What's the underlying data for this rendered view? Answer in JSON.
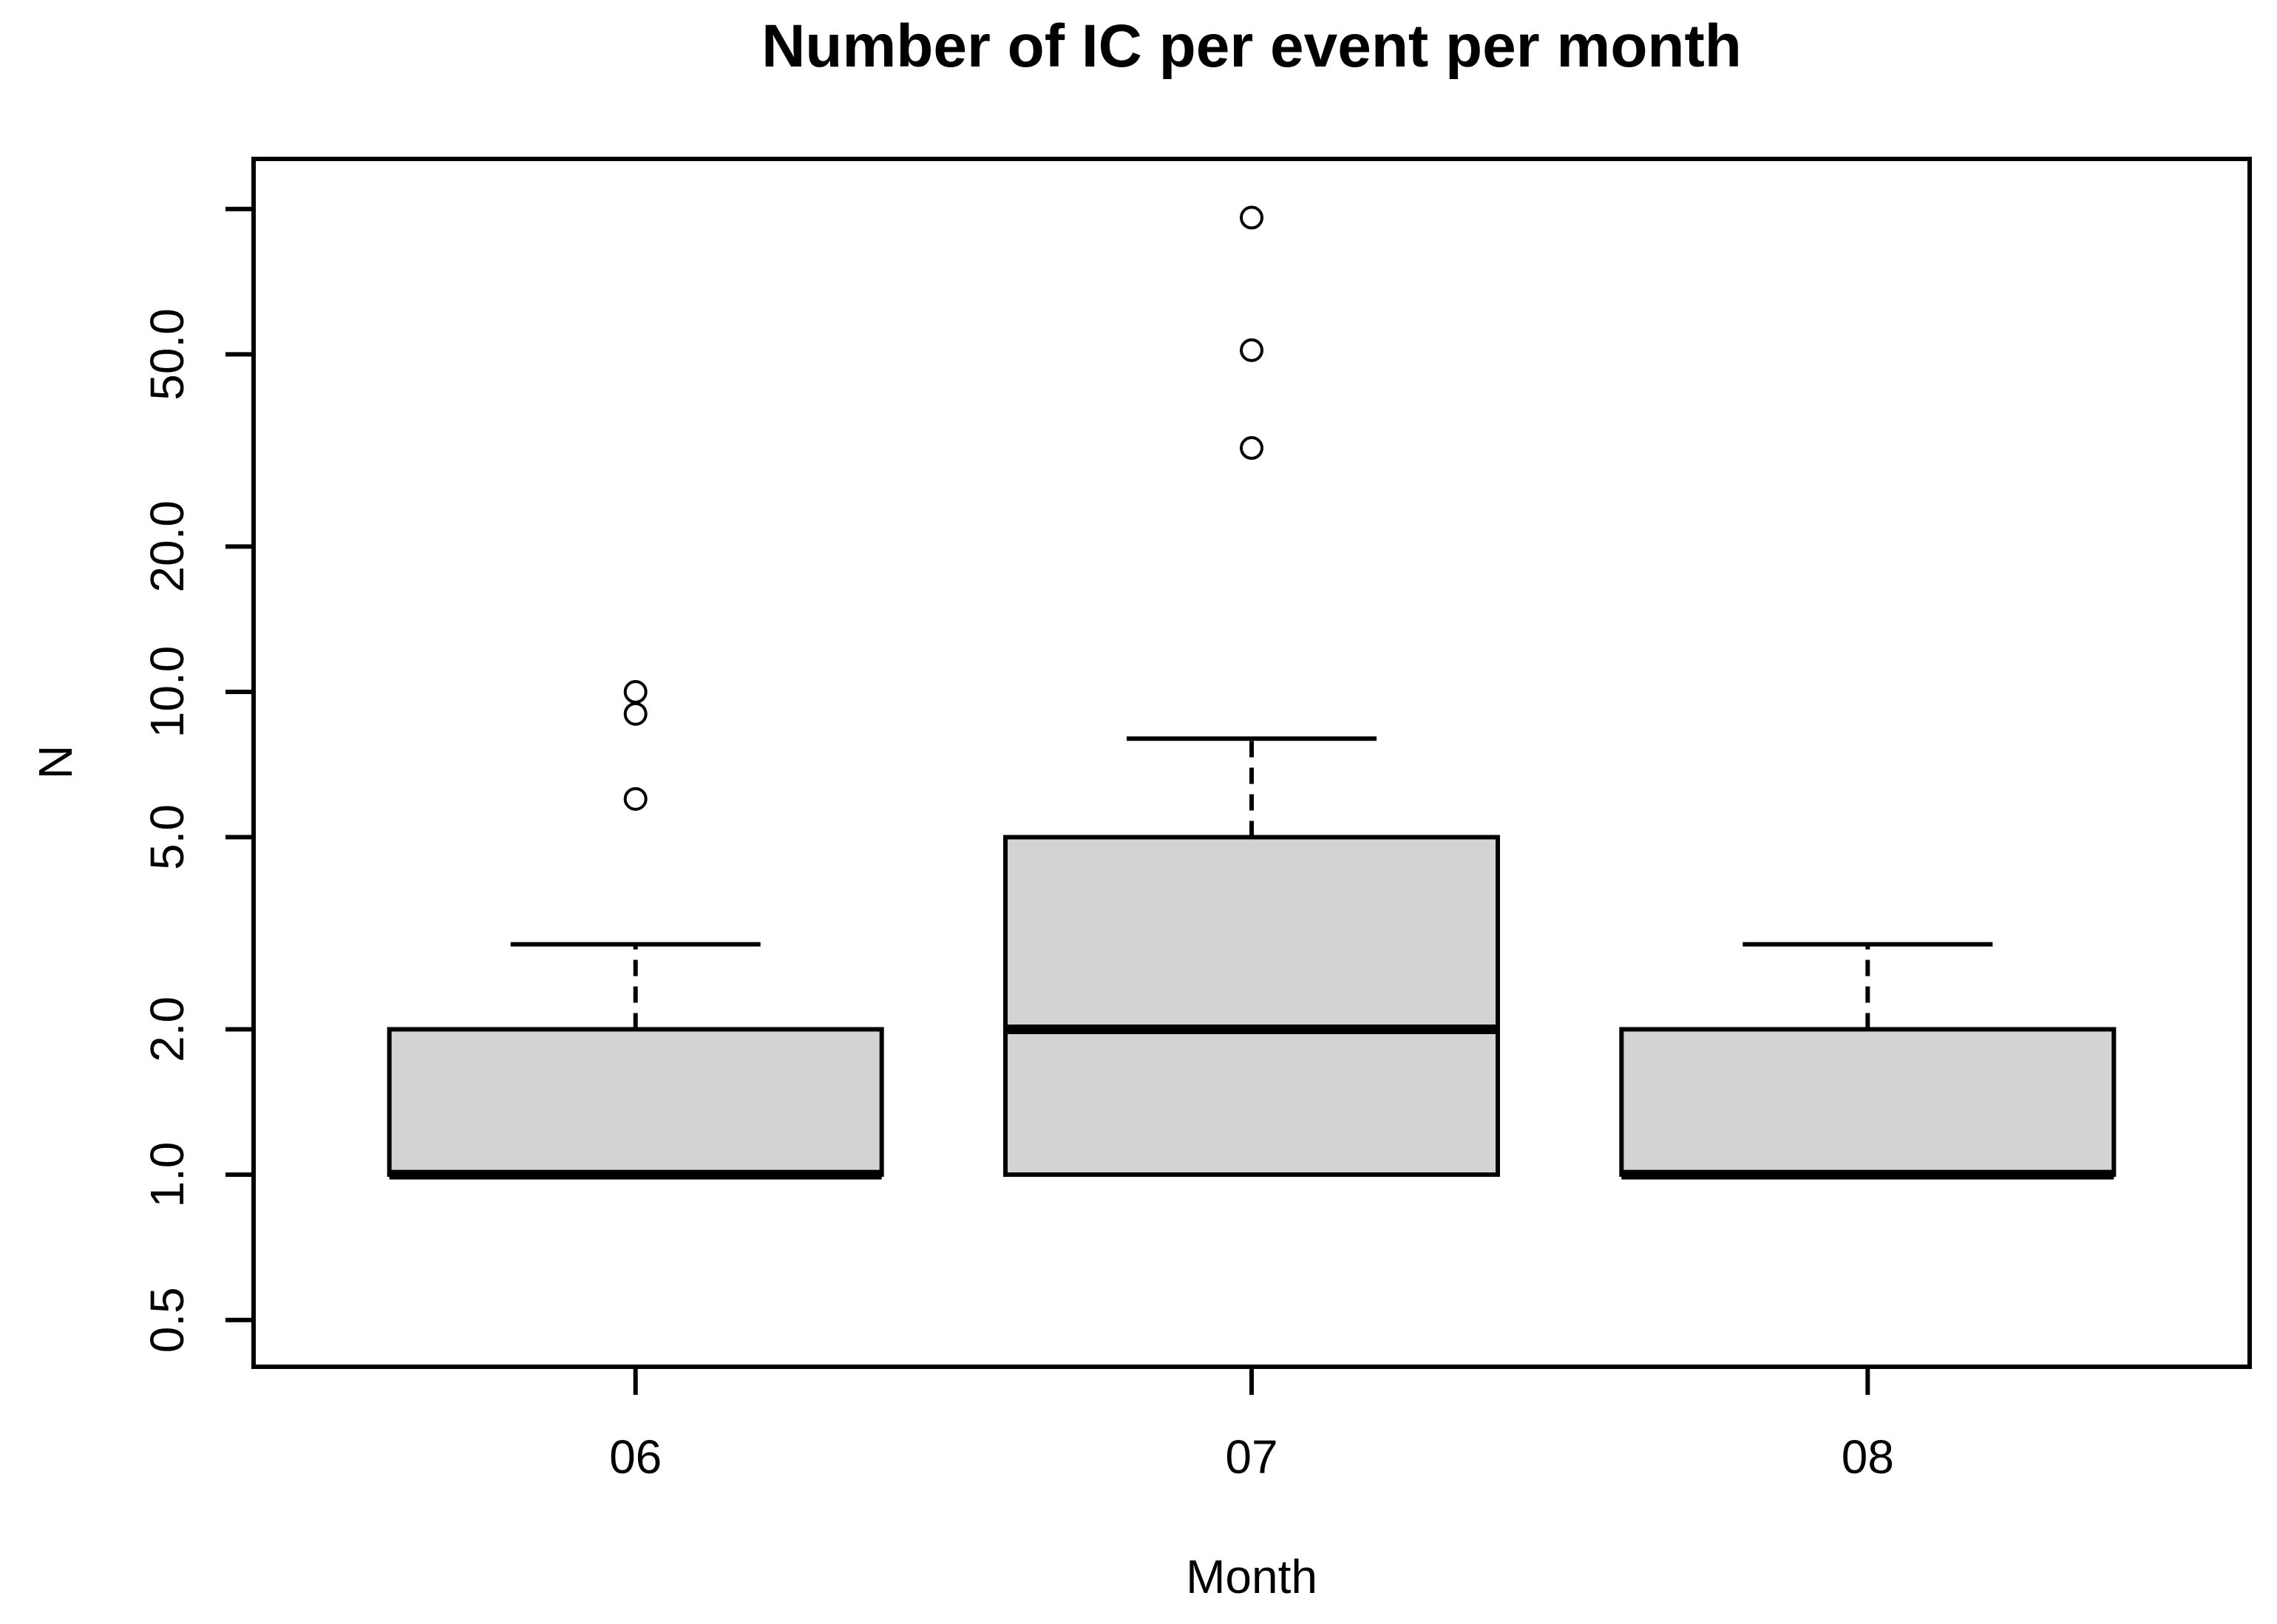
{
  "title": "Number of IC per event per month",
  "x_axis": {
    "label": "Month",
    "categories": [
      "06",
      "07",
      "08"
    ]
  },
  "y_axis": {
    "label": "N",
    "scale": "log",
    "ticks": [
      {
        "value": 0.5,
        "label": "0.5"
      },
      {
        "value": 1,
        "label": "1.0"
      },
      {
        "value": 2,
        "label": "2.0"
      },
      {
        "value": 5,
        "label": "5.0"
      },
      {
        "value": 10,
        "label": "10.0"
      },
      {
        "value": 20,
        "label": "20.0"
      },
      {
        "value": 50,
        "label": "50.0"
      },
      {
        "value": 100,
        "label": ""
      }
    ]
  },
  "chart_data": {
    "type": "boxplot",
    "title": "Number of IC per event per month",
    "xlabel": "Month",
    "ylabel": "N",
    "y_scale": "log10",
    "ylim": [
      0.4,
      127
    ],
    "grid": false,
    "legend": "none",
    "categories": [
      "06",
      "07",
      "08"
    ],
    "series": [
      {
        "category": "06",
        "whisker_low": 1,
        "q1": 1,
        "median": 1,
        "q3": 2,
        "whisker_high": 3,
        "outliers": [
          6,
          9,
          10
        ]
      },
      {
        "category": "07",
        "whisker_low": 1,
        "q1": 1,
        "median": 2,
        "q3": 5,
        "whisker_high": 8,
        "outliers": [
          32,
          51,
          96
        ]
      },
      {
        "category": "08",
        "whisker_low": 1,
        "q1": 1,
        "median": 1,
        "q3": 2,
        "whisker_high": 3,
        "outliers": []
      }
    ],
    "colors": {
      "box_fill": "#d3d3d3",
      "line": "#000000",
      "background": "#ffffff"
    }
  }
}
